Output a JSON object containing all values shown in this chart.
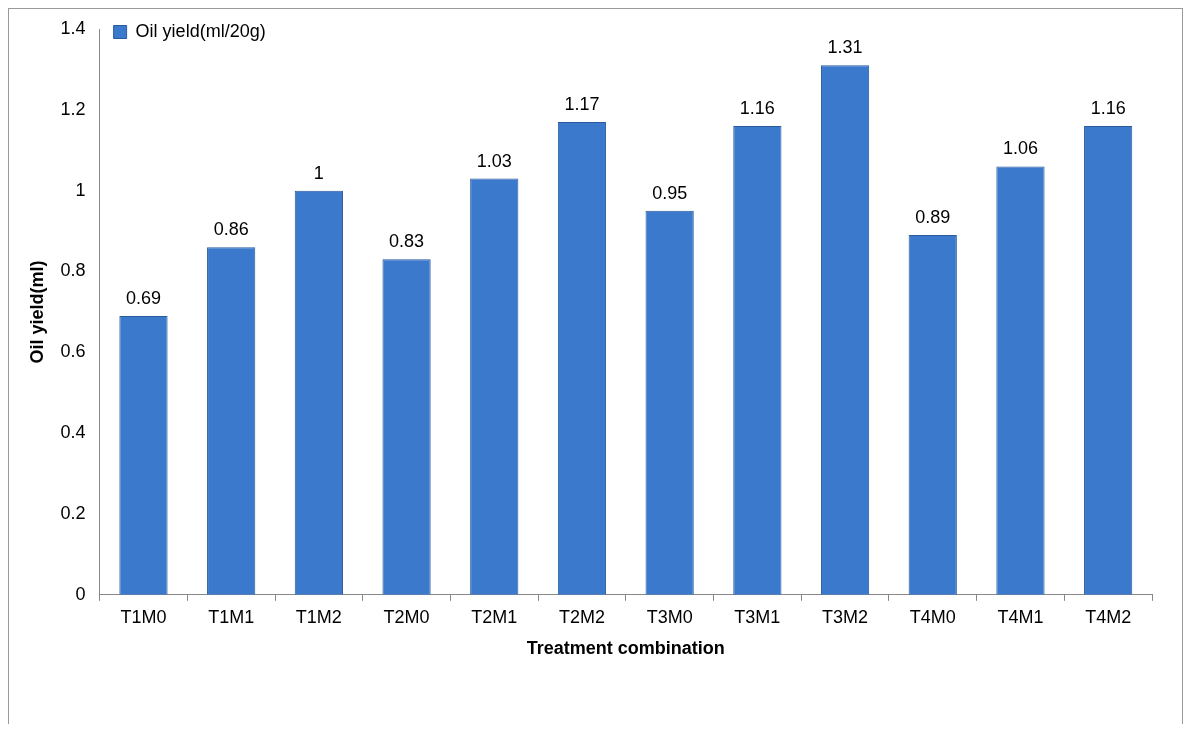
{
  "chart_data": {
    "type": "bar",
    "xlabel": "Treatment combination",
    "ylabel": "Oil yield(ml)",
    "categories": [
      "T1M0",
      "T1M1",
      "T1M2",
      "T2M0",
      "T2M1",
      "T2M2",
      "T3M0",
      "T3M1",
      "T3M2",
      "T4M0",
      "T4M1",
      "T4M2"
    ],
    "series": [
      {
        "name": "Oil yield(ml/20g)",
        "color": "#3b79cc",
        "values": [
          0.69,
          0.86,
          1,
          0.83,
          1.03,
          1.17,
          0.95,
          1.16,
          1.31,
          0.89,
          1.06,
          1.16
        ]
      }
    ],
    "ylim": [
      0,
      1.4
    ],
    "yticks": [
      0,
      0.2,
      0.4,
      0.6,
      0.8,
      1,
      1.2,
      1.4
    ],
    "grid": false,
    "legend": "top left",
    "data_labels": true
  }
}
